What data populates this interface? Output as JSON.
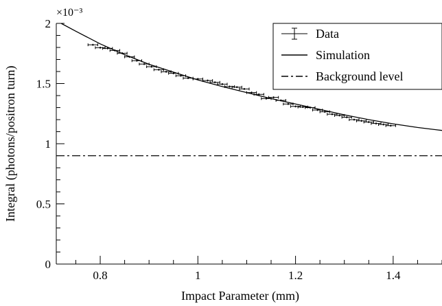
{
  "chart_data": {
    "type": "scatter",
    "xlabel": "Impact Parameter (mm)",
    "ylabel": "Integral (photons/positron turn)",
    "y_multiplier": "×10⁻³",
    "xlim": [
      0.71,
      1.5
    ],
    "ylim": [
      0,
      2
    ],
    "x_ticks": [
      {
        "value": 0.8,
        "label": "0.8"
      },
      {
        "value": 1.0,
        "label": "1"
      },
      {
        "value": 1.2,
        "label": "1.2"
      },
      {
        "value": 1.4,
        "label": "1.4"
      }
    ],
    "y_ticks": [
      {
        "value": 0,
        "label": "0"
      },
      {
        "value": 0.5,
        "label": "0.5"
      },
      {
        "value": 1.0,
        "label": "1"
      },
      {
        "value": 1.5,
        "label": "1.5"
      },
      {
        "value": 2.0,
        "label": "2"
      }
    ],
    "legend": {
      "position": "top-right",
      "entries": [
        {
          "label": "Data",
          "style": "errorbar"
        },
        {
          "label": "Simulation",
          "style": "solid"
        },
        {
          "label": "Background level",
          "style": "dashdot"
        }
      ]
    },
    "series": [
      {
        "name": "Data",
        "style": "errorbar",
        "color": "#000000",
        "x_err": 0.01,
        "y_err": 0.008,
        "points": [
          [
            0.785,
            1.822
          ],
          [
            0.8,
            1.798
          ],
          [
            0.815,
            1.792
          ],
          [
            0.83,
            1.775
          ],
          [
            0.845,
            1.752
          ],
          [
            0.86,
            1.722
          ],
          [
            0.875,
            1.69
          ],
          [
            0.89,
            1.662
          ],
          [
            0.905,
            1.64
          ],
          [
            0.92,
            1.615
          ],
          [
            0.935,
            1.598
          ],
          [
            0.95,
            1.585
          ],
          [
            0.965,
            1.565
          ],
          [
            0.98,
            1.545
          ],
          [
            1.0,
            1.538
          ],
          [
            1.02,
            1.525
          ],
          [
            1.035,
            1.51
          ],
          [
            1.05,
            1.495
          ],
          [
            1.065,
            1.475
          ],
          [
            1.08,
            1.47
          ],
          [
            1.095,
            1.455
          ],
          [
            1.11,
            1.425
          ],
          [
            1.125,
            1.41
          ],
          [
            1.14,
            1.375
          ],
          [
            1.155,
            1.385
          ],
          [
            1.17,
            1.36
          ],
          [
            1.185,
            1.33
          ],
          [
            1.2,
            1.31
          ],
          [
            1.215,
            1.305
          ],
          [
            1.23,
            1.3
          ],
          [
            1.245,
            1.28
          ],
          [
            1.26,
            1.265
          ],
          [
            1.275,
            1.245
          ],
          [
            1.29,
            1.235
          ],
          [
            1.305,
            1.22
          ],
          [
            1.32,
            1.2
          ],
          [
            1.335,
            1.19
          ],
          [
            1.35,
            1.18
          ],
          [
            1.365,
            1.168
          ],
          [
            1.38,
            1.16
          ],
          [
            1.395,
            1.15
          ]
        ]
      },
      {
        "name": "Simulation",
        "style": "solid",
        "color": "#000000",
        "x": [
          0.72,
          0.75,
          0.8,
          0.85,
          0.9,
          0.95,
          1.0,
          1.05,
          1.1,
          1.15,
          1.2,
          1.25,
          1.3,
          1.35,
          1.4,
          1.45,
          1.5
        ],
        "y": [
          2.0,
          1.935,
          1.83,
          1.74,
          1.66,
          1.595,
          1.53,
          1.475,
          1.425,
          1.375,
          1.33,
          1.285,
          1.24,
          1.2,
          1.165,
          1.135,
          1.11
        ]
      },
      {
        "name": "Background level",
        "style": "dashdot",
        "color": "#000000",
        "x": [
          0.71,
          1.5
        ],
        "y": [
          0.9,
          0.9
        ]
      }
    ]
  }
}
